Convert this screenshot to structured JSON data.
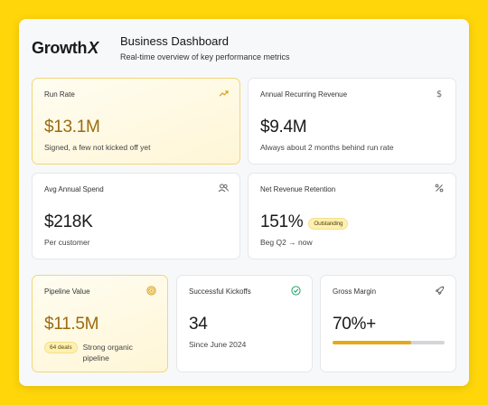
{
  "header": {
    "logo_text": "Growth",
    "logo_mark": "X",
    "title": "Business Dashboard",
    "subtitle": "Real-time overview of key performance metrics"
  },
  "cards": {
    "run_rate": {
      "label": "Run Rate",
      "value": "$13.1M",
      "subtitle": "Signed, a few not kicked off yet",
      "icon": "trending-up-icon"
    },
    "arr": {
      "label": "Annual Recurring Revenue",
      "value": "$9.4M",
      "subtitle": "Always about 2 months behind run rate",
      "icon": "dollar-icon"
    },
    "avg_spend": {
      "label": "Avg Annual Spend",
      "value": "$218K",
      "subtitle": "Per customer",
      "icon": "users-icon"
    },
    "nrr": {
      "label": "Net Revenue Retention",
      "value": "151%",
      "badge": "Outstanding",
      "subtitle": "Beg Q2 → now",
      "icon": "percent-icon"
    },
    "pipeline": {
      "label": "Pipeline Value",
      "value": "$11.5M",
      "badge": "64 deals",
      "subtitle": "Strong organic pipeline",
      "icon": "target-icon"
    },
    "kickoffs": {
      "label": "Successful Kickoffs",
      "value": "34",
      "subtitle": "Since June 2024",
      "icon": "check-circle-icon"
    },
    "margin": {
      "label": "Gross Margin",
      "value": "70%+",
      "progress_fraction": 0.7,
      "icon": "rocket-icon"
    }
  },
  "colors": {
    "background": "#FFD60A",
    "accent": "#e2a91c",
    "highlight_value": "#9a6b0f",
    "success": "#22a06b"
  }
}
